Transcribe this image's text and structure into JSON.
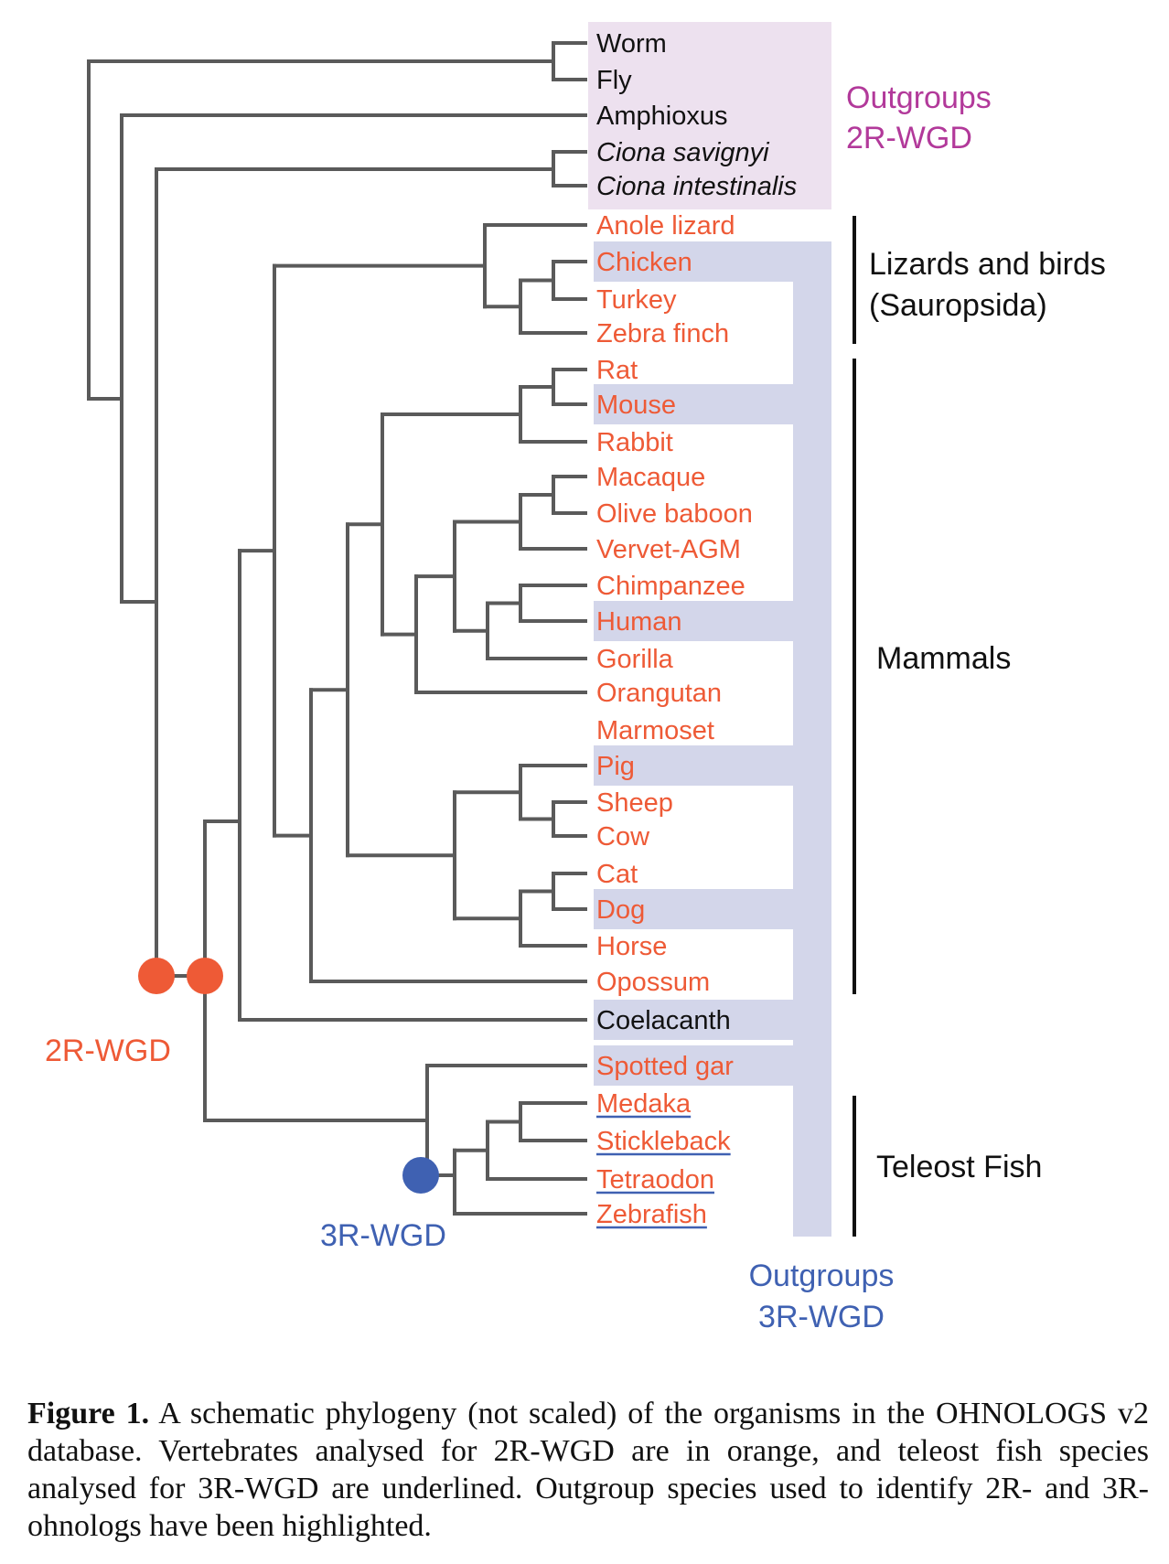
{
  "colors": {
    "branch": "#5a5a5a",
    "orange": "#ee5a36",
    "blue": "#3f61b2",
    "magenta": "#b2399a",
    "lavender_box": "#ede1ef",
    "blue_box": "#d3d6ea",
    "black": "#111111"
  },
  "leaves": [
    {
      "name": "Worm",
      "color": "black",
      "italic": false,
      "underline": false
    },
    {
      "name": "Fly",
      "color": "black",
      "italic": false,
      "underline": false
    },
    {
      "name": "Amphioxus",
      "color": "black",
      "italic": false,
      "underline": false
    },
    {
      "name": "Ciona savignyi",
      "color": "black",
      "italic": true,
      "underline": false
    },
    {
      "name": "Ciona intestinalis",
      "color": "black",
      "italic": true,
      "underline": false
    },
    {
      "name": "Anole lizard",
      "color": "orange",
      "italic": false,
      "underline": false
    },
    {
      "name": "Chicken",
      "color": "orange",
      "italic": false,
      "underline": false
    },
    {
      "name": "Turkey",
      "color": "orange",
      "italic": false,
      "underline": false
    },
    {
      "name": "Zebra finch",
      "color": "orange",
      "italic": false,
      "underline": false
    },
    {
      "name": "Rat",
      "color": "orange",
      "italic": false,
      "underline": false
    },
    {
      "name": "Mouse",
      "color": "orange",
      "italic": false,
      "underline": false
    },
    {
      "name": "Rabbit",
      "color": "orange",
      "italic": false,
      "underline": false
    },
    {
      "name": "Macaque",
      "color": "orange",
      "italic": false,
      "underline": false
    },
    {
      "name": "Olive baboon",
      "color": "orange",
      "italic": false,
      "underline": false
    },
    {
      "name": "Vervet-AGM",
      "color": "orange",
      "italic": false,
      "underline": false
    },
    {
      "name": "Chimpanzee",
      "color": "orange",
      "italic": false,
      "underline": false
    },
    {
      "name": "Human",
      "color": "orange",
      "italic": false,
      "underline": false
    },
    {
      "name": "Gorilla",
      "color": "orange",
      "italic": false,
      "underline": false
    },
    {
      "name": "Orangutan",
      "color": "orange",
      "italic": false,
      "underline": false
    },
    {
      "name": "Marmoset",
      "color": "orange",
      "italic": false,
      "underline": false
    },
    {
      "name": "Pig",
      "color": "orange",
      "italic": false,
      "underline": false
    },
    {
      "name": "Sheep",
      "color": "orange",
      "italic": false,
      "underline": false
    },
    {
      "name": "Cow",
      "color": "orange",
      "italic": false,
      "underline": false
    },
    {
      "name": "Cat",
      "color": "orange",
      "italic": false,
      "underline": false
    },
    {
      "name": "Dog",
      "color": "orange",
      "italic": false,
      "underline": false
    },
    {
      "name": "Horse",
      "color": "orange",
      "italic": false,
      "underline": false
    },
    {
      "name": "Opossum",
      "color": "orange",
      "italic": false,
      "underline": false
    },
    {
      "name": "Coelacanth",
      "color": "black",
      "italic": false,
      "underline": false
    },
    {
      "name": "Spotted gar",
      "color": "orange",
      "italic": false,
      "underline": false
    },
    {
      "name": "Medaka",
      "color": "orange",
      "italic": false,
      "underline": true
    },
    {
      "name": "Stickleback",
      "color": "orange",
      "italic": false,
      "underline": true
    },
    {
      "name": "Tetraodon",
      "color": "orange",
      "italic": false,
      "underline": true
    },
    {
      "name": "Zebrafish",
      "color": "orange",
      "italic": false,
      "underline": true
    }
  ],
  "highlighted_3r_outgroups": [
    "Chicken",
    "Mouse",
    "Human",
    "Pig",
    "Dog",
    "Coelacanth",
    "Spotted gar"
  ],
  "groups": {
    "sauropsida_line1": "Lizards and birds",
    "sauropsida_line2": "(Sauropsida)",
    "mammals": "Mammals",
    "teleost": "Teleost Fish"
  },
  "annotations": {
    "outgroups_2r_line1": "Outgroups",
    "outgroups_2r_line2": "2R-WGD",
    "outgroups_3r_line1": "Outgroups",
    "outgroups_3r_line2": "3R-WGD",
    "wgd_2r": "2R-WGD",
    "wgd_3r": "3R-WGD"
  },
  "caption": {
    "label": "Figure 1.",
    "text": "A schematic phylogeny (not scaled) of the organisms in the OHNOLOGS v2 database. Vertebrates analysed for 2R-WGD are in orange, and teleost fish species analysed for 3R-WGD are underlined. Outgroup species used to identify 2R- and 3R-ohnologs have been highlighted."
  }
}
